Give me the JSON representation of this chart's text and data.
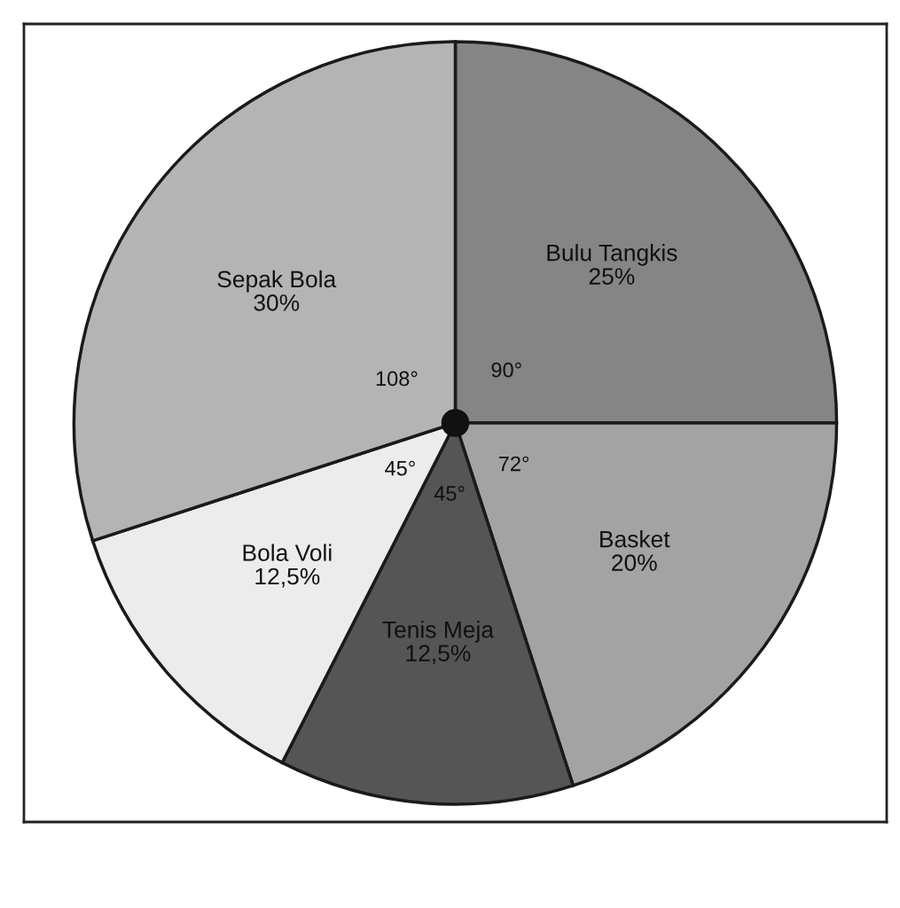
{
  "chart_data": {
    "type": "pie",
    "categories": [
      "Bulu Tangkis",
      "Basket",
      "Tenis Meja",
      "Bola Voli",
      "Sepak Bola"
    ],
    "values": [
      25,
      20,
      12.5,
      12.5,
      30
    ],
    "value_labels": [
      "25%",
      "20%",
      "12,5%",
      "12,5%",
      "30%"
    ],
    "colors": [
      "#858585",
      "#a3a3a3",
      "#555555",
      "#ececec",
      "#b4b4b4"
    ],
    "annotations": [
      "90°",
      "72°",
      "45°",
      "45°",
      "108°"
    ],
    "legend": false
  }
}
